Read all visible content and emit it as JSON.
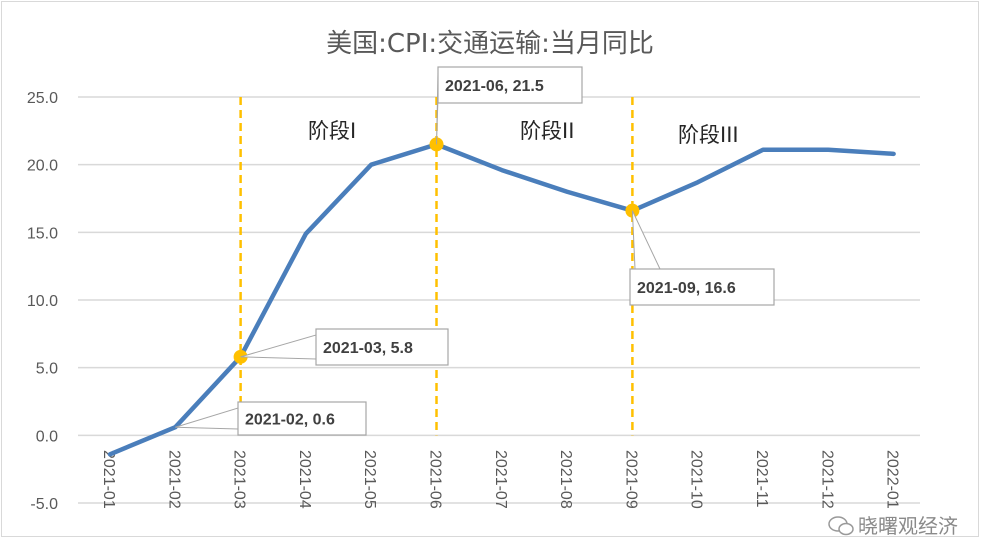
{
  "chart_data": {
    "type": "line",
    "title": "美国:CPI:交通运输:当月同比",
    "xlabel": "",
    "ylabel": "",
    "ylim": [
      -5,
      25
    ],
    "yticks": [
      "-5.0",
      "0.0",
      "5.0",
      "10.0",
      "15.0",
      "20.0",
      "25.0"
    ],
    "ytick_values": [
      -5,
      0,
      5,
      10,
      15,
      20,
      25
    ],
    "grid": true,
    "categories": [
      "2021-01",
      "2021-02",
      "2021-03",
      "2021-04",
      "2021-05",
      "2021-06",
      "2021-07",
      "2021-08",
      "2021-09",
      "2021-10",
      "2021-11",
      "2021-12",
      "2022-01"
    ],
    "series": [
      {
        "name": "美国:CPI:交通运输:当月同比",
        "color": "#4a7ebb",
        "values": [
          -1.4,
          0.6,
          5.8,
          14.9,
          20.0,
          21.5,
          19.6,
          18.0,
          16.6,
          18.7,
          21.1,
          21.1,
          20.8
        ]
      }
    ],
    "highlight_points": [
      {
        "category": "2021-03",
        "value": 5.8,
        "label": "2021-03, 5.8"
      },
      {
        "category": "2021-06",
        "value": 21.5,
        "label": "2021-06, 21.5"
      },
      {
        "category": "2021-09",
        "value": 16.6,
        "label": "2021-09, 16.6"
      }
    ],
    "annotations": [
      {
        "category": "2021-02",
        "value": 0.6,
        "label": "2021-02, 0.6"
      }
    ],
    "phase_lines": [
      "2021-03",
      "2021-06",
      "2021-09"
    ],
    "phase_labels": [
      "阶段I",
      "阶段II",
      "阶段III"
    ],
    "highlight_color": "#ffc000"
  },
  "watermark": "晓曙观经济"
}
